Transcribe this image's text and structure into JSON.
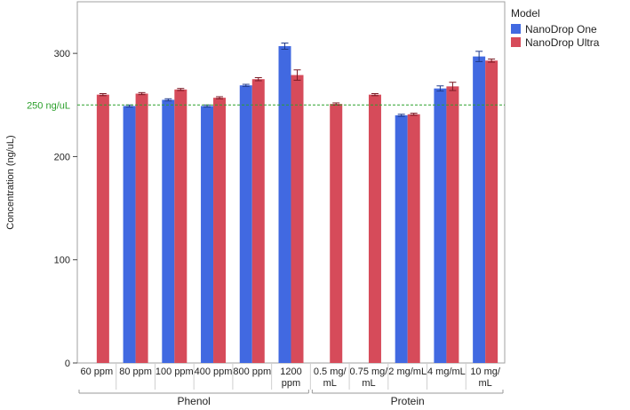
{
  "chart_data": {
    "type": "bar",
    "ylabel": "Concentration (ng/uL)",
    "ylim": [
      0,
      350
    ],
    "yticks": [
      0,
      100,
      200,
      300
    ],
    "reference_line": {
      "value": 250,
      "label": "250 ng/uL",
      "color": "#2ca02c"
    },
    "groups": [
      {
        "name": "Phenol",
        "categories": [
          {
            "label": [
              "60 ppm"
            ],
            "values": [
              null,
              260
            ]
          },
          {
            "label": [
              "80 ppm"
            ],
            "values": [
              249,
              261
            ]
          },
          {
            "label": [
              "100 ppm"
            ],
            "values": [
              255,
              265
            ]
          },
          {
            "label": [
              "400 ppm"
            ],
            "values": [
              249,
              257
            ]
          },
          {
            "label": [
              "800 ppm"
            ],
            "values": [
              269,
              275
            ]
          },
          {
            "label": [
              "1200",
              "ppm"
            ],
            "values": [
              307,
              279
            ]
          }
        ]
      },
      {
        "name": "Protein",
        "categories": [
          {
            "label": [
              "0.5 mg/",
              "mL"
            ],
            "values": [
              null,
              251
            ]
          },
          {
            "label": [
              "0.75 mg/",
              "mL"
            ],
            "values": [
              null,
              260
            ]
          },
          {
            "label": [
              "2 mg/mL"
            ],
            "values": [
              240,
              241
            ]
          },
          {
            "label": [
              "4 mg/mL"
            ],
            "values": [
              266,
              268
            ]
          },
          {
            "label": [
              "10 mg/",
              "mL"
            ],
            "values": [
              297,
              293
            ]
          }
        ]
      }
    ],
    "errors": [
      [
        null,
        1
      ],
      [
        1,
        1
      ],
      [
        1,
        1
      ],
      [
        1,
        1
      ],
      [
        1,
        1.5
      ],
      [
        3,
        5
      ],
      [
        null,
        1
      ],
      [
        null,
        1
      ],
      [
        1,
        1
      ],
      [
        2.5,
        4
      ],
      [
        5,
        1.5
      ]
    ],
    "series": [
      {
        "name": "NanoDrop One",
        "color": "#4169e1"
      },
      {
        "name": "NanoDrop Ultra",
        "color": "#d64b5a"
      }
    ],
    "legend": {
      "title": "Model",
      "position": "right"
    },
    "grid": false
  }
}
